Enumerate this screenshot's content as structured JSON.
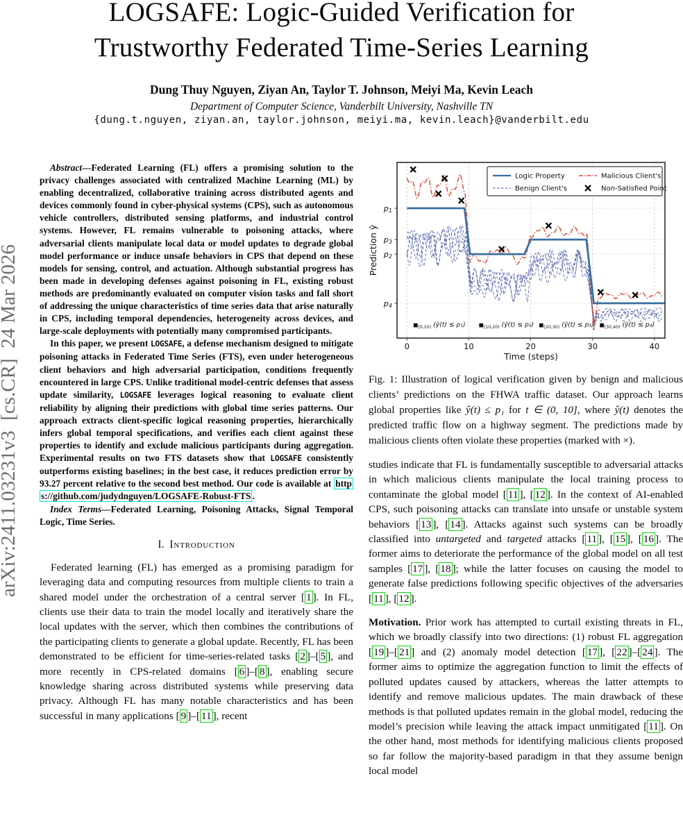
{
  "arxiv_banner": "arXiv:2411.03231v3  [cs.CR]  24 Mar 2026",
  "header": {
    "title_lines": [
      "LOGSAFE: Logic-Guided Verification for",
      "Trustworthy Federated Time-Series Learning"
    ],
    "authors": "Dung Thuy Nguyen, Ziyan An, Taylor T. Johnson, Meiyi Ma, Kevin Leach",
    "affiliation": "Department of Computer Science, Vanderbilt University, Nashville TN",
    "emails": "{dung.t.nguyen, ziyan.an, taylor.johnson, meiyi.ma, kevin.leach}@vanderbilt.edu"
  },
  "abstract": {
    "p1": [
      {
        "k": "bi",
        "v": "Abstract"
      },
      {
        "k": "t",
        "v": "—Federated Learning (FL) offers a promising solution to the privacy challenges associated with centralized Machine Learning (ML) by enabling decentralized, collaborative training across distributed agents and devices commonly found in cyber-physical systems (CPS), such as autonomous vehicle controllers, distributed sensing platforms, and industrial control systems. However, FL remains vulnerable to poisoning attacks, where adversarial clients manipulate local data or model updates to degrade global model performance or induce unsafe behaviors in CPS that depend on these models for sensing, control, and actuation. Although substantial progress has been made in developing defenses against poisoning in FL, existing robust methods are predominantly evaluated on computer vision tasks and fall short of addressing the unique characteristics of time series data that arise naturally in CPS, including temporal dependencies, heterogeneity across devices, and large-scale deployments with potentially many compromised participants."
      }
    ],
    "p2": [
      {
        "k": "t",
        "v": "In this paper, we present "
      },
      {
        "k": "tt",
        "v": "LOGSAFE"
      },
      {
        "k": "t",
        "v": ", a defense mechanism designed to mitigate poisoning attacks in Federated Time Series (FTS), even under heterogeneous client behaviors and high adversarial participation, conditions frequently encountered in large CPS. Unlike traditional model-centric defenses that assess update similarity, "
      },
      {
        "k": "tt",
        "v": "LOGSAFE"
      },
      {
        "k": "t",
        "v": " leverages logical reasoning to evaluate client reliability by aligning their predictions with global time series patterns. Our approach extracts client-specific logical reasoning properties, hierarchically infers global temporal specifications, and verifies each client against these properties to identify and exclude malicious participants during aggregation. Experimental results on two FTS datasets show that "
      },
      {
        "k": "tt",
        "v": "LOGSAFE"
      },
      {
        "k": "t",
        "v": " consistently outperforms existing baselines; in the best case, it reduces prediction error by 93.27 percent relative to the second best method. Our code is available at "
      },
      {
        "k": "link",
        "v": "https://github.com/judydnguyen/LOGSAFE-Robust-FTS"
      },
      {
        "k": "t",
        "v": "."
      }
    ],
    "index_terms": [
      {
        "k": "bi",
        "v": "Index Terms"
      },
      {
        "k": "t",
        "v": "—Federated Learning, Poisoning Attacks, Signal Temporal Logic, Time Series."
      }
    ]
  },
  "section1": {
    "label": "I.",
    "title": "Introduction"
  },
  "intro_p1": [
    {
      "k": "t",
      "v": "Federated learning (FL) has emerged as a promising paradigm for leveraging data and computing resources from multiple clients to train a shared model under the orchestration of a central server "
    },
    {
      "k": "cite",
      "v": "1"
    },
    {
      "k": "t",
      "v": ". In FL, clients use their data to train the model locally and iteratively share the local updates with the server, which then combines the contributions of the participating clients to generate a global update. Recently, FL has been demonstrated to be efficient for time-series-related tasks "
    },
    {
      "k": "cite",
      "v": "2"
    },
    {
      "k": "t",
      "v": "–"
    },
    {
      "k": "cite",
      "v": "5"
    },
    {
      "k": "t",
      "v": ", and more recently in CPS-related domains "
    },
    {
      "k": "cite",
      "v": "6"
    },
    {
      "k": "t",
      "v": "–"
    },
    {
      "k": "cite",
      "v": "8"
    },
    {
      "k": "t",
      "v": ", enabling secure knowledge sharing across distributed systems while preserving data privacy. Although FL has many notable characteristics and has been successful in many applications "
    },
    {
      "k": "cite",
      "v": "9"
    },
    {
      "k": "t",
      "v": "–"
    },
    {
      "k": "cite",
      "v": "11"
    },
    {
      "k": "t",
      "v": ", recent"
    }
  ],
  "figure": {
    "caption": [
      {
        "k": "t",
        "v": "Fig. 1: Illustration of logical verification given by benign and malicious clients’ predictions on the FHWA traffic dataset. Our approach learns global properties like "
      },
      {
        "k": "m",
        "v": "ŷ(t) ≤ p₁"
      },
      {
        "k": "t",
        "v": " for "
      },
      {
        "k": "m",
        "v": "t ∈ (0, 10]"
      },
      {
        "k": "t",
        "v": ", where "
      },
      {
        "k": "m",
        "v": "ŷ(t)"
      },
      {
        "k": "t",
        "v": " denotes the predicted traffic flow on a highway segment. The predictions made by malicious clients often violate these properties (marked with ×)."
      }
    ]
  },
  "chart_data": {
    "type": "line",
    "title": "",
    "xlabel": "Time (steps)",
    "ylabel": "Prediction ŷ",
    "x_ticks": [
      0,
      10,
      20,
      30,
      40
    ],
    "xlim": [
      -1.6,
      41.7
    ],
    "ylim": [
      0,
      1
    ],
    "grid": true,
    "legend_position": "upper right",
    "y_ticks": [
      {
        "base": "p",
        "sub": "1",
        "v": 0.739
      },
      {
        "base": "p",
        "sub": "3",
        "v": 0.561
      },
      {
        "base": "p",
        "sub": "2",
        "v": 0.478
      },
      {
        "base": "p",
        "sub": "4",
        "v": 0.198
      }
    ],
    "legend": [
      {
        "label": "Logic Property",
        "style": "solid",
        "color": "#3a6fa0"
      },
      {
        "label": "Benign Client's",
        "style": "dashed",
        "color": "#3d4f9c"
      },
      {
        "label": "Malicious Client's",
        "style": "dashdot",
        "color": "#d9472b"
      },
      {
        "label": "Non-Satisfied Point",
        "style": "xmarker",
        "color": "#111111"
      }
    ],
    "logic_property": {
      "color": "#3a6fa0",
      "points": [
        [
          0,
          0.739
        ],
        [
          9.3,
          0.739
        ],
        [
          10.2,
          0.478
        ],
        [
          19.0,
          0.478
        ],
        [
          20.0,
          0.561
        ],
        [
          29.0,
          0.561
        ],
        [
          30.2,
          0.198
        ],
        [
          41.7,
          0.198
        ]
      ]
    },
    "malicious": {
      "color": "#d9472b",
      "freq": 2.3,
      "phase": 0.9,
      "segments": [
        {
          "t0": 0,
          "t1": 9.5,
          "base": 0.865,
          "amp": 0.07
        },
        {
          "t0": 10.2,
          "t1": 19.3,
          "base": 0.447,
          "amp": 0.032,
          "bump_t": 15.2,
          "bump_h": 0.065,
          "bump_w": 1.1
        },
        {
          "t0": 19.9,
          "t1": 29.2,
          "base": 0.605,
          "amp": 0.034
        },
        {
          "t0": 30.9,
          "t1": 41.3,
          "base": 0.243,
          "amp": 0.02
        }
      ],
      "dip": [
        30.2,
        0.045
      ]
    },
    "benign": {
      "color": "#3d4f9c",
      "count": 5,
      "segments": [
        {
          "t0": 0,
          "t1": 9.7,
          "base": 0.545,
          "amp": 0.13
        },
        {
          "t0": 10.3,
          "t1": 19.6,
          "base": 0.32,
          "amp": 0.105
        },
        {
          "t0": 20.1,
          "t1": 29.3,
          "base": 0.425,
          "amp": 0.105
        },
        {
          "t0": 30.8,
          "t1": 41.3,
          "base": 0.142,
          "amp": 0.032
        }
      ],
      "dip": [
        30.25,
        0.06
      ]
    },
    "non_satisfied_points": [
      [
        1.0,
        0.96
      ],
      [
        5.1,
        0.822
      ],
      [
        6.1,
        0.909
      ],
      [
        8.8,
        0.783
      ],
      [
        15.3,
        0.506
      ],
      [
        22.9,
        0.64
      ],
      [
        31.3,
        0.261
      ],
      [
        36.9,
        0.245
      ]
    ],
    "annotations": [
      {
        "t": 1.0,
        "v": 0.065,
        "op": "■",
        "interval": "[0,10)",
        "expr": "(ŷ(t) ≤ p₁)"
      },
      {
        "t": 11.6,
        "v": 0.065,
        "op": "■",
        "interval": "[10,20)",
        "expr": "(ŷ(t) ≤ p₂)"
      },
      {
        "t": 21.3,
        "v": 0.065,
        "op": "■",
        "interval": "[20,30)",
        "expr": "(ŷ(t) ≤ p₃)"
      },
      {
        "t": 31.1,
        "v": 0.065,
        "op": "■",
        "interval": "[30,40)",
        "expr": "(ŷ(t) ≤ p₄)"
      }
    ]
  },
  "col_right": {
    "p1": [
      {
        "k": "t",
        "v": "studies indicate that FL is fundamentally susceptible to adversarial attacks in which malicious clients manipulate the local training process to contaminate the global model "
      },
      {
        "k": "cite",
        "v": "11"
      },
      {
        "k": "t",
        "v": ", "
      },
      {
        "k": "cite",
        "v": "12"
      },
      {
        "k": "t",
        "v": ". In the context of AI-enabled CPS, such poisoning attacks can translate into unsafe or unstable system behaviors "
      },
      {
        "k": "cite",
        "v": "13"
      },
      {
        "k": "t",
        "v": ", "
      },
      {
        "k": "cite",
        "v": "14"
      },
      {
        "k": "t",
        "v": ". Attacks against such systems can be broadly classified into "
      },
      {
        "k": "i",
        "v": "untargeted"
      },
      {
        "k": "t",
        "v": " and "
      },
      {
        "k": "i",
        "v": "targeted"
      },
      {
        "k": "t",
        "v": " attacks "
      },
      {
        "k": "cite",
        "v": "11"
      },
      {
        "k": "t",
        "v": ", "
      },
      {
        "k": "cite",
        "v": "15"
      },
      {
        "k": "t",
        "v": ", "
      },
      {
        "k": "cite",
        "v": "16"
      },
      {
        "k": "t",
        "v": ". The former aims to deteriorate the performance of the global model on all test samples "
      },
      {
        "k": "cite",
        "v": "17"
      },
      {
        "k": "t",
        "v": ", "
      },
      {
        "k": "cite",
        "v": "18"
      },
      {
        "k": "t",
        "v": "; while the latter focuses on causing the model to generate false predictions following specific objectives of the adversaries "
      },
      {
        "k": "cite",
        "v": "11"
      },
      {
        "k": "t",
        "v": ", "
      },
      {
        "k": "cite",
        "v": "12"
      },
      {
        "k": "t",
        "v": "."
      }
    ],
    "p2": [
      {
        "k": "b",
        "v": "Motivation."
      },
      {
        "k": "t",
        "v": " Prior work has attempted to curtail existing threats in FL, which we broadly classify into two directions: (1) robust FL aggregation "
      },
      {
        "k": "cite",
        "v": "19"
      },
      {
        "k": "t",
        "v": "–"
      },
      {
        "k": "cite",
        "v": "21"
      },
      {
        "k": "t",
        "v": " and (2) anomaly model detection "
      },
      {
        "k": "cite",
        "v": "17"
      },
      {
        "k": "t",
        "v": ", "
      },
      {
        "k": "cite",
        "v": "22"
      },
      {
        "k": "t",
        "v": "–"
      },
      {
        "k": "cite",
        "v": "24"
      },
      {
        "k": "t",
        "v": ". The former aims to optimize the aggregation function to limit the effects of polluted updates caused by attackers, whereas the latter attempts to identify and remove malicious updates. The main drawback of these methods is that polluted updates remain in the global model, reducing the model’s precision while leaving the attack impact unmitigated "
      },
      {
        "k": "cite",
        "v": "11"
      },
      {
        "k": "t",
        "v": ". On the other hand, most methods for identifying malicious clients proposed so far follow the majority-based paradigm in that they assume benign local model"
      }
    ]
  }
}
